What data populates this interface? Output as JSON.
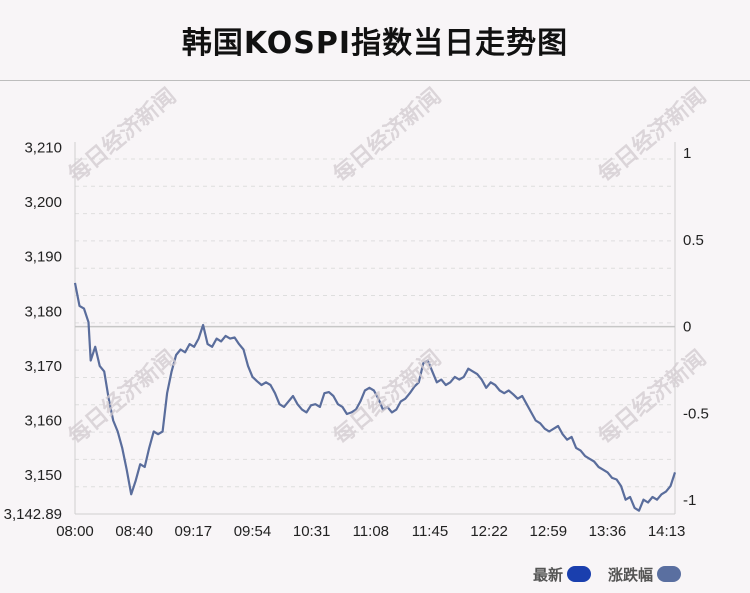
{
  "title": "韩国KOSPI指数当日走势图",
  "watermark": "每日经济新闻",
  "legend": [
    {
      "label": "最新",
      "color": "#1a3fae"
    },
    {
      "label": "涨跌幅",
      "color": "#5a6fa0"
    }
  ],
  "chart_data": {
    "type": "line",
    "x_ticks": [
      "08:00",
      "08:40",
      "09:17",
      "09:54",
      "10:31",
      "11:08",
      "11:45",
      "12:22",
      "12:59",
      "13:36",
      "14:13"
    ],
    "y_left": {
      "min": 3142.89,
      "max": 3211,
      "ticks": [
        "3,210",
        "3,200",
        "3,190",
        "3,180",
        "3,170",
        "3,160",
        "3,150",
        "3,142.89"
      ],
      "tick_values": [
        3210,
        3200,
        3190,
        3180,
        3170,
        3160,
        3150,
        3142.89
      ]
    },
    "y_right": {
      "ticks": [
        "1",
        "0.5",
        "0",
        "-0.5",
        "-1"
      ],
      "tick_values": [
        1,
        0.5,
        0,
        -0.5,
        -1
      ]
    },
    "reference_value": 3177.2,
    "line_color": "#5a6d9c",
    "series": [
      {
        "t": 0,
        "v": 3185.2
      },
      {
        "t": 2,
        "v": 3181
      },
      {
        "t": 4,
        "v": 3180.5
      },
      {
        "t": 6,
        "v": 3178
      },
      {
        "t": 7,
        "v": 3171
      },
      {
        "t": 9,
        "v": 3173.5
      },
      {
        "t": 11,
        "v": 3170
      },
      {
        "t": 13,
        "v": 3169
      },
      {
        "t": 15,
        "v": 3164
      },
      {
        "t": 17,
        "v": 3160
      },
      {
        "t": 19,
        "v": 3158
      },
      {
        "t": 21,
        "v": 3155
      },
      {
        "t": 23,
        "v": 3151
      },
      {
        "t": 25,
        "v": 3146.5
      },
      {
        "t": 27,
        "v": 3149
      },
      {
        "t": 29,
        "v": 3152
      },
      {
        "t": 31,
        "v": 3151.5
      },
      {
        "t": 33,
        "v": 3155
      },
      {
        "t": 35,
        "v": 3158
      },
      {
        "t": 37,
        "v": 3157.5
      },
      {
        "t": 39,
        "v": 3158
      },
      {
        "t": 41,
        "v": 3165
      },
      {
        "t": 43,
        "v": 3169
      },
      {
        "t": 45,
        "v": 3172
      },
      {
        "t": 47,
        "v": 3173
      },
      {
        "t": 49,
        "v": 3172.5
      },
      {
        "t": 51,
        "v": 3174
      },
      {
        "t": 53,
        "v": 3173.5
      },
      {
        "t": 55,
        "v": 3175
      },
      {
        "t": 57,
        "v": 3177.5
      },
      {
        "t": 59,
        "v": 3174
      },
      {
        "t": 61,
        "v": 3173.5
      },
      {
        "t": 63,
        "v": 3175
      },
      {
        "t": 65,
        "v": 3174.5
      },
      {
        "t": 67,
        "v": 3175.5
      },
      {
        "t": 69,
        "v": 3175
      },
      {
        "t": 71,
        "v": 3175.2
      },
      {
        "t": 73,
        "v": 3174
      },
      {
        "t": 75,
        "v": 3173
      },
      {
        "t": 77,
        "v": 3170
      },
      {
        "t": 79,
        "v": 3168
      },
      {
        "t": 81,
        "v": 3167.2
      },
      {
        "t": 83,
        "v": 3166.5
      },
      {
        "t": 85,
        "v": 3167
      },
      {
        "t": 87,
        "v": 3166.5
      },
      {
        "t": 89,
        "v": 3165
      },
      {
        "t": 91,
        "v": 3163
      },
      {
        "t": 93,
        "v": 3162.5
      },
      {
        "t": 95,
        "v": 3163.5
      },
      {
        "t": 97,
        "v": 3164.5
      },
      {
        "t": 99,
        "v": 3163
      },
      {
        "t": 101,
        "v": 3162
      },
      {
        "t": 103,
        "v": 3161.5
      },
      {
        "t": 105,
        "v": 3162.8
      },
      {
        "t": 107,
        "v": 3163
      },
      {
        "t": 109,
        "v": 3162.5
      },
      {
        "t": 111,
        "v": 3165
      },
      {
        "t": 113,
        "v": 3165.2
      },
      {
        "t": 115,
        "v": 3164.5
      },
      {
        "t": 117,
        "v": 3163
      },
      {
        "t": 119,
        "v": 3162.5
      },
      {
        "t": 121,
        "v": 3161.2
      },
      {
        "t": 123,
        "v": 3161.5
      },
      {
        "t": 125,
        "v": 3162
      },
      {
        "t": 127,
        "v": 3163.5
      },
      {
        "t": 129,
        "v": 3165.5
      },
      {
        "t": 131,
        "v": 3166
      },
      {
        "t": 133,
        "v": 3165.5
      },
      {
        "t": 135,
        "v": 3164
      },
      {
        "t": 137,
        "v": 3162
      },
      {
        "t": 139,
        "v": 3162.5
      },
      {
        "t": 141,
        "v": 3161.5
      },
      {
        "t": 143,
        "v": 3162
      },
      {
        "t": 145,
        "v": 3163.5
      },
      {
        "t": 147,
        "v": 3164
      },
      {
        "t": 149,
        "v": 3165
      },
      {
        "t": 151,
        "v": 3166.2
      },
      {
        "t": 153,
        "v": 3167
      },
      {
        "t": 155,
        "v": 3170.5
      },
      {
        "t": 157,
        "v": 3171
      },
      {
        "t": 159,
        "v": 3169
      },
      {
        "t": 161,
        "v": 3167
      },
      {
        "t": 163,
        "v": 3167.5
      },
      {
        "t": 165,
        "v": 3166.5
      },
      {
        "t": 167,
        "v": 3167
      },
      {
        "t": 169,
        "v": 3168
      },
      {
        "t": 171,
        "v": 3167.5
      },
      {
        "t": 173,
        "v": 3168
      },
      {
        "t": 175,
        "v": 3169.5
      },
      {
        "t": 177,
        "v": 3169
      },
      {
        "t": 179,
        "v": 3168.5
      },
      {
        "t": 181,
        "v": 3167.5
      },
      {
        "t": 183,
        "v": 3166
      },
      {
        "t": 185,
        "v": 3167
      },
      {
        "t": 187,
        "v": 3166.5
      },
      {
        "t": 189,
        "v": 3165.5
      },
      {
        "t": 191,
        "v": 3165
      },
      {
        "t": 193,
        "v": 3165.5
      },
      {
        "t": 195,
        "v": 3164.8
      },
      {
        "t": 197,
        "v": 3164
      },
      {
        "t": 199,
        "v": 3164.5
      },
      {
        "t": 201,
        "v": 3163
      },
      {
        "t": 203,
        "v": 3161.5
      },
      {
        "t": 205,
        "v": 3160
      },
      {
        "t": 207,
        "v": 3159.5
      },
      {
        "t": 209,
        "v": 3158.5
      },
      {
        "t": 211,
        "v": 3158
      },
      {
        "t": 213,
        "v": 3158.5
      },
      {
        "t": 215,
        "v": 3159
      },
      {
        "t": 217,
        "v": 3157.5
      },
      {
        "t": 219,
        "v": 3156.5
      },
      {
        "t": 221,
        "v": 3157
      },
      {
        "t": 223,
        "v": 3155
      },
      {
        "t": 225,
        "v": 3154.5
      },
      {
        "t": 227,
        "v": 3153.5
      },
      {
        "t": 229,
        "v": 3153
      },
      {
        "t": 231,
        "v": 3152.5
      },
      {
        "t": 233,
        "v": 3151.5
      },
      {
        "t": 235,
        "v": 3151
      },
      {
        "t": 237,
        "v": 3150.5
      },
      {
        "t": 239,
        "v": 3149.5
      },
      {
        "t": 241,
        "v": 3149.2
      },
      {
        "t": 243,
        "v": 3148
      },
      {
        "t": 245,
        "v": 3145.5
      },
      {
        "t": 247,
        "v": 3146
      },
      {
        "t": 249,
        "v": 3144
      },
      {
        "t": 251,
        "v": 3143.5
      },
      {
        "t": 253,
        "v": 3145.5
      },
      {
        "t": 255,
        "v": 3145
      },
      {
        "t": 257,
        "v": 3146
      },
      {
        "t": 259,
        "v": 3145.5
      },
      {
        "t": 261,
        "v": 3146.5
      },
      {
        "t": 263,
        "v": 3147
      },
      {
        "t": 265,
        "v": 3148
      },
      {
        "t": 267,
        "v": 3150.5
      }
    ]
  }
}
